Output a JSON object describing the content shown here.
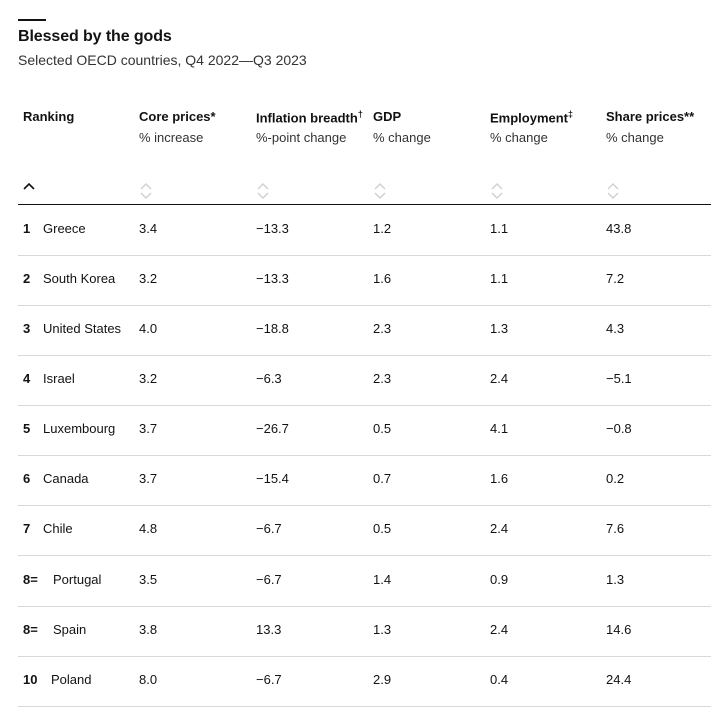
{
  "header": {
    "title": "Blessed by the gods",
    "subtitle": "Selected OECD countries, Q4 2022—Q3 2023"
  },
  "columns": [
    {
      "label": "Ranking",
      "sublabel": "",
      "mark": ""
    },
    {
      "label": "Core prices*",
      "sublabel": "% increase",
      "mark": ""
    },
    {
      "label": "Inflation breadth",
      "sublabel": "%-point change",
      "mark": "†"
    },
    {
      "label": "GDP",
      "sublabel": "% change",
      "mark": ""
    },
    {
      "label": "Employment",
      "sublabel": "% change",
      "mark": "‡"
    },
    {
      "label": "Share prices**",
      "sublabel": "% change",
      "mark": ""
    }
  ],
  "icons": {
    "sort_active": "chevron-up-icon",
    "sort_inactive": "sort-icon"
  },
  "colors": {
    "text": "#121212",
    "rule": "#121212",
    "row_rule": "#d9d9d9",
    "icon": "#cfcfcf"
  },
  "chart_data": {
    "type": "table",
    "title": "Blessed by the gods",
    "subtitle": "Selected OECD countries, Q4 2022—Q3 2023",
    "rows": [
      {
        "rank": "1",
        "country": "Greece",
        "core_prices": "3.4",
        "inflation_breadth": "−13.3",
        "gdp": "1.2",
        "employment": "1.1",
        "share_prices": "43.8"
      },
      {
        "rank": "2",
        "country": "South Korea",
        "core_prices": "3.2",
        "inflation_breadth": "−13.3",
        "gdp": "1.6",
        "employment": "1.1",
        "share_prices": "7.2"
      },
      {
        "rank": "3",
        "country": "United States",
        "core_prices": "4.0",
        "inflation_breadth": "−18.8",
        "gdp": "2.3",
        "employment": "1.3",
        "share_prices": "4.3"
      },
      {
        "rank": "4",
        "country": "Israel",
        "core_prices": "3.2",
        "inflation_breadth": "−6.3",
        "gdp": "2.3",
        "employment": "2.4",
        "share_prices": "−5.1"
      },
      {
        "rank": "5",
        "country": "Luxembourg",
        "core_prices": "3.7",
        "inflation_breadth": "−26.7",
        "gdp": "0.5",
        "employment": "4.1",
        "share_prices": "−0.8"
      },
      {
        "rank": "6",
        "country": "Canada",
        "core_prices": "3.7",
        "inflation_breadth": "−15.4",
        "gdp": "0.7",
        "employment": "1.6",
        "share_prices": "0.2"
      },
      {
        "rank": "7",
        "country": "Chile",
        "core_prices": "4.8",
        "inflation_breadth": "−6.7",
        "gdp": "0.5",
        "employment": "2.4",
        "share_prices": "7.6"
      },
      {
        "rank": "8=",
        "country": "Portugal",
        "core_prices": "3.5",
        "inflation_breadth": "−6.7",
        "gdp": "1.4",
        "employment": "0.9",
        "share_prices": "1.3"
      },
      {
        "rank": "8=",
        "country": "Spain",
        "core_prices": "3.8",
        "inflation_breadth": "13.3",
        "gdp": "1.3",
        "employment": "2.4",
        "share_prices": "14.6"
      },
      {
        "rank": "10",
        "country": "Poland",
        "core_prices": "8.0",
        "inflation_breadth": "−6.7",
        "gdp": "2.9",
        "employment": "0.4",
        "share_prices": "24.4"
      }
    ]
  }
}
